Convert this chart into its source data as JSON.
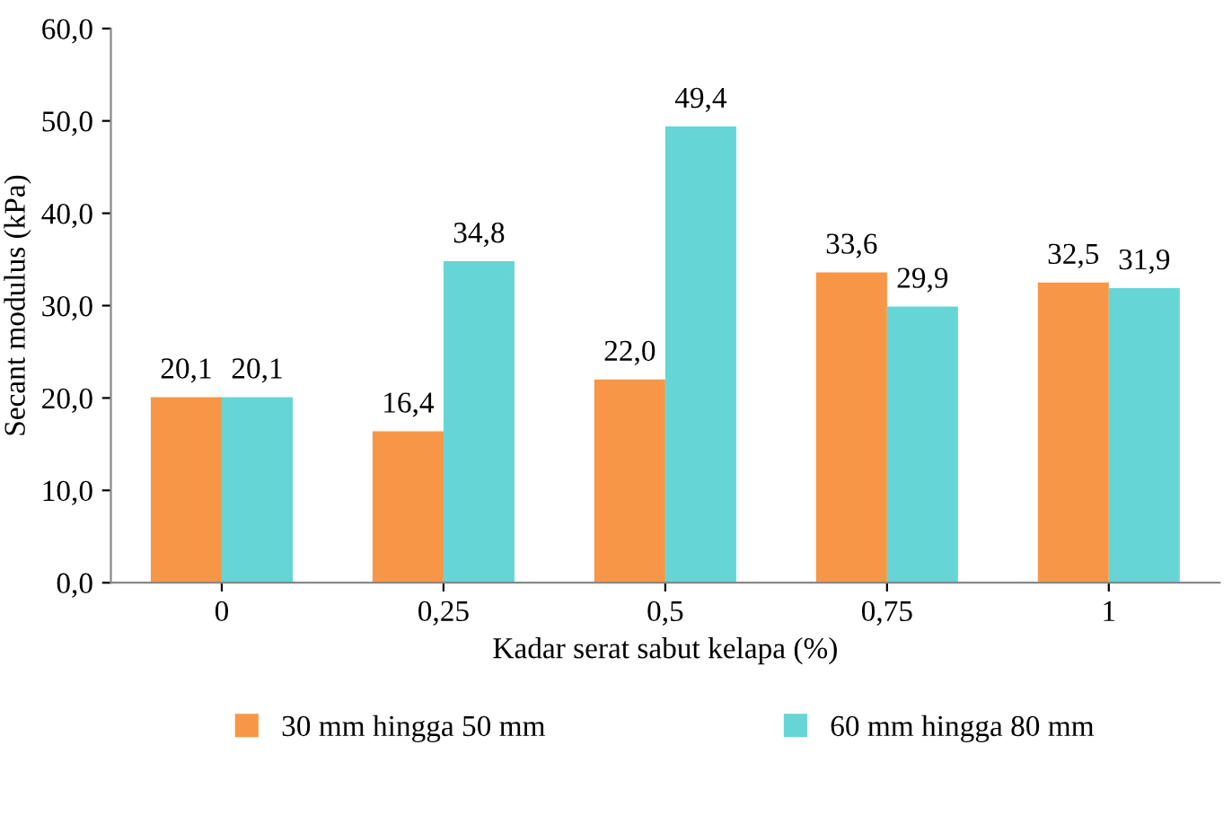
{
  "chart_data": {
    "type": "bar",
    "xlabel": "Kadar serat sabut kelapa (%)",
    "ylabel": "Secant modulus (kPa)",
    "categories": [
      "0",
      "0,25",
      "0,5",
      "0,75",
      "1"
    ],
    "series": [
      {
        "name": "30 mm hingga 50 mm",
        "color": "#f79646",
        "values": [
          20.1,
          16.4,
          22.0,
          33.6,
          32.5
        ],
        "value_labels": [
          "20,1",
          "16,4",
          "22,0",
          "33,6",
          "32,5"
        ]
      },
      {
        "name": "60 mm hingga 80 mm",
        "color": "#66d5d5",
        "values": [
          20.1,
          34.8,
          49.4,
          29.9,
          31.9
        ],
        "value_labels": [
          "20,1",
          "34,8",
          "49,4",
          "29,9",
          "31,9"
        ]
      }
    ],
    "ylim": [
      0,
      60
    ],
    "yticks": [
      {
        "value": 0,
        "label": "0,0"
      },
      {
        "value": 10,
        "label": "10,0"
      },
      {
        "value": 20,
        "label": "20,0"
      },
      {
        "value": 30,
        "label": "30,0"
      },
      {
        "value": 40,
        "label": "40,0"
      },
      {
        "value": 50,
        "label": "50,0"
      },
      {
        "value": 60,
        "label": "60,0"
      }
    ],
    "legend": "bottom",
    "grid": false
  }
}
